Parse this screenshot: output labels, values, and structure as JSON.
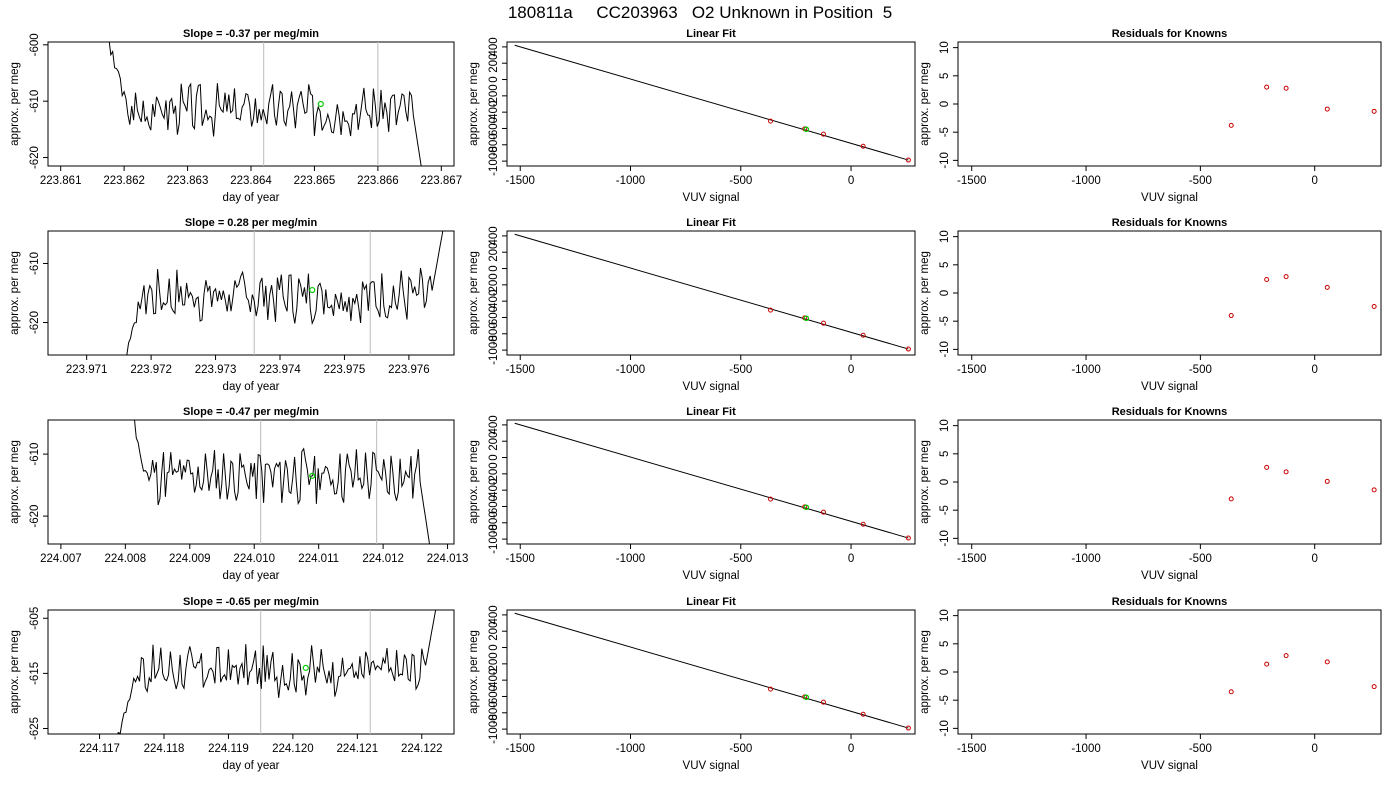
{
  "page_title": "180811a     CC203963   O2 Unknown in Position  5",
  "colors": {
    "trace": "#000000",
    "highlight": "#00cc00",
    "point": "#cc0000",
    "vline": "#bbbbbb"
  },
  "chart_data": [
    {
      "type": "line",
      "row": 1,
      "panel": "time-series",
      "title": "Slope =  -0.37  per meg/min",
      "xlabel": "day of year",
      "ylabel": "approx. per meg",
      "xlim": [
        223.8608,
        223.8672
      ],
      "ylim": [
        -621.5,
        -599.5
      ],
      "xticks": [
        "223.861",
        "223.862",
        "223.863",
        "223.864",
        "223.865",
        "223.866",
        "223.867"
      ],
      "yticks": [
        "-620",
        "-610",
        "-600"
      ],
      "vlines": [
        223.8642,
        223.866
      ],
      "series": [
        {
          "x_range": [
            223.8617,
            223.8668
          ],
          "mean": -611.5,
          "ramp_start": -598,
          "ramp_end": -630,
          "seed": 3
        }
      ],
      "highlight": {
        "x": 223.8651,
        "y": -610.5
      }
    },
    {
      "type": "line",
      "row": 1,
      "panel": "linear-fit",
      "title": "Linear Fit",
      "xlabel": "VUV signal",
      "ylabel": "approx. per meg",
      "xlim": [
        -1560,
        290
      ],
      "ylim": [
        -1060,
        460
      ],
      "xticks": [
        "-1500",
        "-1000",
        "-500",
        "0"
      ],
      "yticks": [
        "-1000",
        "-600",
        "-200",
        "200"
      ],
      "yticks_side": [
        "-800",
        "-400",
        "0",
        "400"
      ],
      "line": {
        "x": [
          -1525,
          260
        ],
        "y": [
          420,
          -987
        ]
      },
      "points": [
        [
          -365,
          -510
        ],
        [
          -210,
          -605
        ],
        [
          -125,
          -670
        ],
        [
          55,
          -818
        ],
        [
          260,
          -987
        ]
      ],
      "highlight": {
        "x": -203,
        "y": -610
      }
    },
    {
      "type": "scatter",
      "row": 1,
      "panel": "residuals",
      "title": "Residuals for Knowns",
      "xlabel": "VUV signal",
      "ylabel": "approx. per meg",
      "xlim": [
        -1560,
        290
      ],
      "ylim": [
        -11,
        11
      ],
      "xticks": [
        "-1500",
        "-1000",
        "-500",
        "0"
      ],
      "yticks": [
        "-10",
        "-5",
        "0",
        "5",
        "10"
      ],
      "points": [
        [
          -365,
          -3.8
        ],
        [
          -210,
          3.0
        ],
        [
          -125,
          2.8
        ],
        [
          55,
          -0.9
        ],
        [
          260,
          -1.3
        ]
      ]
    },
    {
      "type": "line",
      "row": 2,
      "panel": "time-series",
      "title": "Slope =  0.28  per meg/min",
      "xlabel": "day of year",
      "ylabel": "approx. per meg",
      "xlim": [
        223.9704,
        223.9767
      ],
      "ylim": [
        -625.5,
        -604.5
      ],
      "xticks": [
        "223.971",
        "223.972",
        "223.973",
        "223.974",
        "223.975",
        "223.976"
      ],
      "yticks": [
        "-620",
        "-610"
      ],
      "vlines": [
        223.9736,
        223.9754
      ],
      "series": [
        {
          "x_range": [
            223.9715,
            223.9766
          ],
          "mean": -615.5,
          "ramp_start": -630,
          "ramp_end": -600,
          "seed": 7
        }
      ],
      "highlight": {
        "x": 223.9745,
        "y": -614.5
      }
    },
    {
      "type": "line",
      "row": 2,
      "panel": "linear-fit",
      "title": "Linear Fit",
      "xlabel": "VUV signal",
      "ylabel": "approx. per meg",
      "xlim": [
        -1560,
        290
      ],
      "ylim": [
        -1060,
        460
      ],
      "xticks": [
        "-1500",
        "-1000",
        "-500",
        "0"
      ],
      "yticks": [
        "-1000",
        "-600",
        "-200",
        "200"
      ],
      "yticks_side": [
        "-800",
        "-400",
        "0",
        "400"
      ],
      "line": {
        "x": [
          -1525,
          260
        ],
        "y": [
          420,
          -987
        ]
      },
      "points": [
        [
          -365,
          -510
        ],
        [
          -210,
          -605
        ],
        [
          -125,
          -670
        ],
        [
          55,
          -818
        ],
        [
          260,
          -987
        ]
      ],
      "highlight": {
        "x": -203,
        "y": -610
      }
    },
    {
      "type": "scatter",
      "row": 2,
      "panel": "residuals",
      "title": "Residuals for Knowns",
      "xlabel": "VUV signal",
      "ylabel": "approx. per meg",
      "xlim": [
        -1560,
        290
      ],
      "ylim": [
        -11,
        11
      ],
      "xticks": [
        "-1500",
        "-1000",
        "-500",
        "0"
      ],
      "yticks": [
        "-10",
        "-5",
        "0",
        "5",
        "10"
      ],
      "points": [
        [
          -365,
          -4.0
        ],
        [
          -210,
          2.4
        ],
        [
          -125,
          2.9
        ],
        [
          55,
          1.0
        ],
        [
          260,
          -2.4
        ]
      ]
    },
    {
      "type": "line",
      "row": 3,
      "panel": "time-series",
      "title": "Slope =  -0.47  per meg/min",
      "xlabel": "day of year",
      "ylabel": "approx. per meg",
      "xlim": [
        224.0068,
        224.0131
      ],
      "ylim": [
        -624.5,
        -604.5
      ],
      "xticks": [
        "224.007",
        "224.008",
        "224.009",
        "224.010",
        "224.011",
        "224.012",
        "224.013"
      ],
      "yticks": [
        "-620",
        "-610"
      ],
      "vlines": [
        224.0101,
        224.0119
      ],
      "series": [
        {
          "x_range": [
            224.008,
            224.0128
          ],
          "mean": -613.5,
          "ramp_start": -600,
          "ramp_end": -630,
          "seed": 11
        }
      ],
      "highlight": {
        "x": 224.0109,
        "y": -613.5
      }
    },
    {
      "type": "line",
      "row": 3,
      "panel": "linear-fit",
      "title": "Linear Fit",
      "xlabel": "VUV signal",
      "ylabel": "approx. per meg",
      "xlim": [
        -1560,
        290
      ],
      "ylim": [
        -1060,
        460
      ],
      "xticks": [
        "-1500",
        "-1000",
        "-500",
        "0"
      ],
      "yticks": [
        "-1000",
        "-600",
        "-200",
        "200"
      ],
      "yticks_side": [
        "-800",
        "-400",
        "0",
        "400"
      ],
      "line": {
        "x": [
          -1525,
          260
        ],
        "y": [
          420,
          -987
        ]
      },
      "points": [
        [
          -365,
          -510
        ],
        [
          -210,
          -605
        ],
        [
          -125,
          -670
        ],
        [
          55,
          -818
        ],
        [
          260,
          -987
        ]
      ],
      "highlight": {
        "x": -203,
        "y": -610
      }
    },
    {
      "type": "scatter",
      "row": 3,
      "panel": "residuals",
      "title": "Residuals for Knowns",
      "xlabel": "VUV signal",
      "ylabel": "approx. per meg",
      "xlim": [
        -1560,
        290
      ],
      "ylim": [
        -11,
        11
      ],
      "xticks": [
        "-1500",
        "-1000",
        "-500",
        "0"
      ],
      "yticks": [
        "-10",
        "-5",
        "0",
        "5",
        "10"
      ],
      "points": [
        [
          -365,
          -3.0
        ],
        [
          -210,
          2.6
        ],
        [
          -125,
          1.8
        ],
        [
          55,
          0.1
        ],
        [
          260,
          -1.4
        ]
      ]
    },
    {
      "type": "line",
      "row": 4,
      "panel": "time-series",
      "title": "Slope =  -0.65  per meg/min",
      "xlabel": "day of year",
      "ylabel": "approx. per meg",
      "xlim": [
        224.1162,
        224.1225
      ],
      "ylim": [
        -626,
        -603.5
      ],
      "xticks": [
        "224.117",
        "224.118",
        "224.119",
        "224.120",
        "224.121",
        "224.122"
      ],
      "yticks": [
        "-625",
        "-615",
        "-605"
      ],
      "vlines": [
        224.1195,
        224.1212
      ],
      "series": [
        {
          "x_range": [
            224.1172,
            224.1223
          ],
          "mean": -614.5,
          "ramp_start": -630,
          "ramp_end": -598,
          "seed": 17
        }
      ],
      "highlight": {
        "x": 224.1202,
        "y": -614.0
      }
    },
    {
      "type": "line",
      "row": 4,
      "panel": "linear-fit",
      "title": "Linear Fit",
      "xlabel": "VUV signal",
      "ylabel": "approx. per meg",
      "xlim": [
        -1560,
        290
      ],
      "ylim": [
        -1060,
        460
      ],
      "xticks": [
        "-1500",
        "-1000",
        "-500",
        "0"
      ],
      "yticks": [
        "-1000",
        "-600",
        "-200",
        "200"
      ],
      "yticks_side": [
        "-800",
        "-400",
        "0",
        "400"
      ],
      "line": {
        "x": [
          -1525,
          260
        ],
        "y": [
          420,
          -987
        ]
      },
      "points": [
        [
          -365,
          -510
        ],
        [
          -210,
          -605
        ],
        [
          -125,
          -670
        ],
        [
          55,
          -818
        ],
        [
          260,
          -987
        ]
      ],
      "highlight": {
        "x": -203,
        "y": -610
      }
    },
    {
      "type": "scatter",
      "row": 4,
      "panel": "residuals",
      "title": "Residuals for Knowns",
      "xlabel": "VUV signal",
      "ylabel": "approx. per meg",
      "xlim": [
        -1560,
        290
      ],
      "ylim": [
        -11,
        11
      ],
      "xticks": [
        "-1500",
        "-1000",
        "-500",
        "0"
      ],
      "yticks": [
        "-10",
        "-5",
        "0",
        "5",
        "10"
      ],
      "points": [
        [
          -365,
          -3.5
        ],
        [
          -210,
          1.4
        ],
        [
          -125,
          2.9
        ],
        [
          55,
          1.8
        ],
        [
          260,
          -2.6
        ]
      ]
    }
  ]
}
